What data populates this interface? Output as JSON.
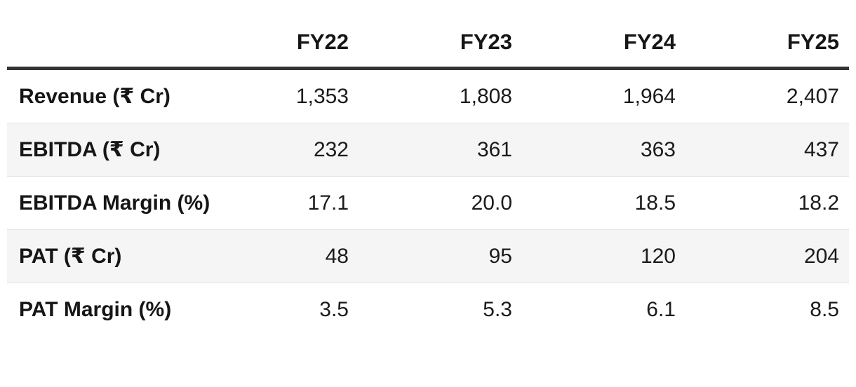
{
  "table": {
    "columns": [
      "FY22",
      "FY23",
      "FY24",
      "FY25"
    ],
    "rows": [
      {
        "label": "Revenue (₹ Cr)",
        "values": [
          "1,353",
          "1,808",
          "1,964",
          "2,407"
        ]
      },
      {
        "label": "EBITDA (₹ Cr)",
        "values": [
          "232",
          "361",
          "363",
          "437"
        ]
      },
      {
        "label": "EBITDA Margin (%)",
        "values": [
          "17.1",
          "20.0",
          "18.5",
          "18.2"
        ]
      },
      {
        "label": "PAT (₹ Cr)",
        "values": [
          "48",
          "95",
          "120",
          "204"
        ]
      },
      {
        "label": "PAT Margin (%)",
        "values": [
          "3.5",
          "5.3",
          "6.1",
          "8.5"
        ]
      }
    ],
    "colors": {
      "header_rule": "#333333",
      "row_alt_background": "#f5f5f5",
      "row_divider": "#e4e4e4",
      "text": "#1b1b1b"
    }
  },
  "chart_data": {
    "type": "table",
    "categories": [
      "FY22",
      "FY23",
      "FY24",
      "FY25"
    ],
    "series": [
      {
        "name": "Revenue (₹ Cr)",
        "values": [
          1353,
          1808,
          1964,
          2407
        ]
      },
      {
        "name": "EBITDA (₹ Cr)",
        "values": [
          232,
          361,
          363,
          437
        ]
      },
      {
        "name": "EBITDA Margin (%)",
        "values": [
          17.1,
          20.0,
          18.5,
          18.2
        ]
      },
      {
        "name": "PAT (₹ Cr)",
        "values": [
          48,
          95,
          120,
          204
        ]
      },
      {
        "name": "PAT Margin (%)",
        "values": [
          3.5,
          5.3,
          6.1,
          8.5
        ]
      }
    ],
    "title": "",
    "xlabel": "",
    "ylabel": "",
    "notes": "Financial summary table; first column row labels bold, values right-aligned, alternate rows shaded."
  }
}
